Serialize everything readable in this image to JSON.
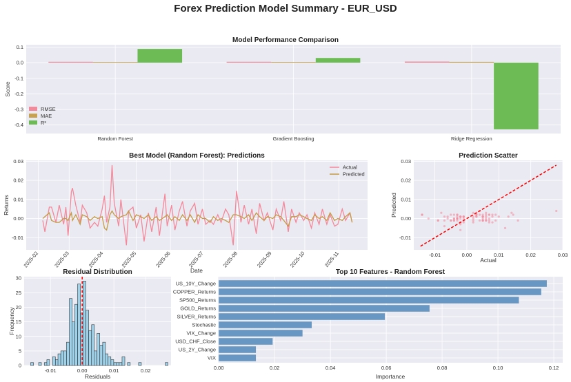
{
  "title": "Forex Prediction Model Summary - EUR_USD",
  "chart_data": [
    {
      "type": "bar",
      "title": "Model Performance Comparison",
      "xlabel": "",
      "ylabel": "Score",
      "categories": [
        "Random Forest",
        "Gradient Boosting",
        "Ridge Regression"
      ],
      "series": [
        {
          "name": "RMSE",
          "values": [
            0.0055,
            0.0056,
            0.0068
          ],
          "color": "#f28a9c"
        },
        {
          "name": "MAE",
          "values": [
            0.004,
            0.0041,
            0.005
          ],
          "color": "#c8a24e"
        },
        {
          "name": "R²",
          "values": [
            0.088,
            0.03,
            -0.428
          ],
          "color": "#6dbb55"
        }
      ],
      "ylim": [
        -0.455,
        0.115
      ],
      "yticks": [
        0.1,
        0.0,
        -0.1,
        -0.2,
        -0.3,
        -0.4
      ],
      "ytick_labels": [
        "0.1",
        "0.0",
        "-0.1",
        "-0.2",
        "-0.3",
        "-0.4"
      ],
      "legend": "lower-left",
      "grid": true
    },
    {
      "type": "line",
      "title": "Best Model (Random Forest): Predictions",
      "xlabel": "Date",
      "ylabel": "Returns",
      "xlim": [
        "2025-01-21",
        "2025-11-27"
      ],
      "ylim": [
        -0.0164,
        0.0305
      ],
      "xticks": [
        "2025-02-01",
        "2025-03-01",
        "2025-04-01",
        "2025-05-01",
        "2025-06-01",
        "2025-07-01",
        "2025-08-01",
        "2025-09-01",
        "2025-10-01",
        "2025-11-01"
      ],
      "xtick_labels": [
        "2025-02",
        "2025-03",
        "2025-04",
        "2025-05",
        "2025-06",
        "2025-07",
        "2025-08",
        "2025-09",
        "2025-10",
        "2025-11"
      ],
      "yticks": [
        0.03,
        0.02,
        0.01,
        0.0,
        -0.01
      ],
      "ytick_labels": [
        "0.03",
        "0.02",
        "0.01",
        "0.00",
        "-0.01"
      ],
      "legend": "upper-right",
      "grid": true,
      "dates": [
        "2025-02-05",
        "2025-02-07",
        "2025-02-11",
        "2025-02-13",
        "2025-02-17",
        "2025-02-20",
        "2025-02-24",
        "2025-02-26",
        "2025-02-28",
        "2025-03-03",
        "2025-03-04",
        "2025-03-07",
        "2025-03-11",
        "2025-03-13",
        "2025-03-17",
        "2025-03-20",
        "2025-03-24",
        "2025-03-27",
        "2025-03-31",
        "2025-04-02",
        "2025-04-04",
        "2025-04-07",
        "2025-04-09",
        "2025-04-11",
        "2025-04-15",
        "2025-04-17",
        "2025-04-22",
        "2025-04-24",
        "2025-04-28",
        "2025-05-01",
        "2025-05-05",
        "2025-05-08",
        "2025-05-12",
        "2025-05-15",
        "2025-05-19",
        "2025-05-22",
        "2025-05-27",
        "2025-05-29",
        "2025-06-02",
        "2025-06-05",
        "2025-06-09",
        "2025-06-12",
        "2025-06-16",
        "2025-06-19",
        "2025-06-23",
        "2025-06-26",
        "2025-06-30",
        "2025-07-03",
        "2025-07-07",
        "2025-07-10",
        "2025-07-14",
        "2025-07-17",
        "2025-07-21",
        "2025-07-24",
        "2025-07-28",
        "2025-07-31",
        "2025-08-04",
        "2025-08-07",
        "2025-08-11",
        "2025-08-14",
        "2025-08-18",
        "2025-08-21",
        "2025-08-25",
        "2025-08-28",
        "2025-09-02",
        "2025-09-05",
        "2025-09-09",
        "2025-09-12",
        "2025-09-16",
        "2025-09-19",
        "2025-09-23",
        "2025-09-26",
        "2025-09-30",
        "2025-10-03",
        "2025-10-07",
        "2025-10-10",
        "2025-10-14",
        "2025-10-17",
        "2025-10-21",
        "2025-10-24",
        "2025-10-28",
        "2025-10-31",
        "2025-11-04",
        "2025-11-07",
        "2025-11-11",
        "2025-11-13"
      ],
      "series": [
        {
          "name": "Actual",
          "color": "#f4889a",
          "values": [
            -0.001,
            -0.007,
            0.006,
            0.006,
            -0.002,
            0.007,
            -0.003,
            0.006,
            -0.009,
            0.014,
            0.016,
            0.007,
            -0.002,
            0.007,
            0.003,
            -0.005,
            -0.002,
            -0.004,
            0.005,
            0.012,
            -0.002,
            0.006,
            0.028,
            0.008,
            -0.004,
            0.01,
            -0.014,
            0.004,
            0.006,
            -0.005,
            0.002,
            -0.012,
            0.003,
            -0.007,
            0.006,
            -0.009,
            0.013,
            -0.004,
            0.007,
            -0.006,
            0.004,
            0.009,
            -0.004,
            0.004,
            0.008,
            -0.003,
            0.005,
            -0.003,
            -0.001,
            -0.003,
            0.002,
            -0.002,
            0.005,
            0.002,
            -0.014,
            0.0145,
            -0.002,
            0.007,
            -0.003,
            0.005,
            -0.008,
            0.008,
            -0.001,
            0.003,
            -0.006,
            0.005,
            -0.001,
            0.009,
            -0.007,
            0.005,
            -0.002,
            0.003,
            -0.001,
            0.002,
            -0.005,
            0.003,
            -0.003,
            0.005,
            -0.003,
            0.002,
            -0.004,
            -0.003,
            0.005,
            -0.001,
            0.003,
            -0.002
          ]
        },
        {
          "name": "Predicted",
          "color": "#c49a45",
          "values": [
            0.0,
            0.001,
            0.003,
            -0.001,
            -0.002,
            -0.002,
            0.0,
            0.0,
            -0.001,
            0.003,
            -0.001,
            0.002,
            -0.003,
            0.002,
            0.001,
            -0.001,
            0.001,
            0.0,
            0.001,
            -0.005,
            -0.006,
            0.002,
            0.004,
            0.002,
            0.0,
            0.001,
            0.002,
            0.004,
            -0.001,
            0.002,
            0.001,
            0.0,
            0.002,
            -0.001,
            0.001,
            -0.001,
            0.001,
            0.002,
            -0.001,
            0.001,
            -0.001,
            0.002,
            -0.001,
            0.002,
            -0.002,
            0.002,
            0.0,
            0.0,
            -0.002,
            0.001,
            -0.001,
            0.0,
            -0.001,
            -0.002,
            0.002,
            0.002,
            0.001,
            0.0,
            0.002,
            -0.001,
            0.003,
            0.001,
            -0.001,
            0.001,
            0.0,
            0.002,
            0.001,
            -0.001,
            -0.004,
            0.001,
            0.001,
            0.002,
            0.001,
            0.0,
            -0.001,
            0.002,
            0.0,
            0.001,
            -0.001,
            0.003,
            -0.001,
            0.0,
            -0.001,
            0.001,
            0.003,
            -0.002
          ]
        }
      ]
    },
    {
      "type": "scatter",
      "title": "Prediction Scatter",
      "xlabel": "Actual",
      "ylabel": "Predicted",
      "points_from": "Best Model (Random Forest): Predictions",
      "xlim": [
        -0.0166,
        0.03
      ],
      "ylim": [
        -0.0164,
        0.0305
      ],
      "xticks": [
        -0.01,
        0.0,
        0.01,
        0.02,
        0.03
      ],
      "xtick_labels": [
        "-0.01",
        "0.00",
        "0.01",
        "0.02",
        "0.03"
      ],
      "yticks": [
        0.03,
        0.02,
        0.01,
        0.0,
        -0.01
      ],
      "ytick_labels": [
        "0.03",
        "0.02",
        "0.01",
        "0.00",
        "-0.01"
      ],
      "point_color": "#f4889a",
      "reference_line": {
        "from": -0.0145,
        "to": 0.028,
        "color": "#ff0000",
        "style": "dashed"
      },
      "grid": true
    },
    {
      "type": "bar",
      "subtype": "histogram",
      "title": "Residual Distribution",
      "xlabel": "Residuals",
      "ylabel": "Frequency",
      "bin_width": 0.00088,
      "bin_centers": [
        -0.0158,
        -0.0133,
        -0.0115,
        -0.0107,
        -0.0089,
        -0.008,
        -0.0072,
        -0.0063,
        -0.0054,
        -0.0045,
        -0.0036,
        -0.0028,
        -0.0019,
        -0.001,
        -0.0001,
        0.0007,
        0.0016,
        0.0025,
        0.0034,
        0.0042,
        0.0051,
        0.006,
        0.0069,
        0.0077,
        0.0086,
        0.0095,
        0.0104,
        0.0112,
        0.0121,
        0.013,
        0.0147,
        0.0182,
        0.0266
      ],
      "counts": [
        1,
        1,
        1,
        2,
        3,
        2,
        4,
        5,
        5,
        8,
        23,
        15,
        21,
        28,
        18,
        29,
        19,
        12,
        14,
        5,
        11,
        7,
        8,
        4,
        3,
        2,
        1,
        1,
        1,
        3,
        1,
        1,
        1
      ],
      "bar_color": "#9fd3ec",
      "mean_line": {
        "value": 0.0,
        "color": "#ff0000",
        "style": "dashed"
      },
      "xlim": [
        -0.0183,
        0.028
      ],
      "ylim": [
        0,
        30.5
      ],
      "xticks": [
        -0.01,
        0.0,
        0.01,
        0.02
      ],
      "xtick_labels": [
        "-0.01",
        "0.00",
        "0.01",
        "0.02"
      ],
      "yticks": [
        0,
        5,
        10,
        15,
        20,
        25,
        30
      ],
      "ytick_labels": [
        "0",
        "5",
        "10",
        "15",
        "20",
        "25",
        "30"
      ],
      "grid": true
    },
    {
      "type": "bar",
      "orientation": "horizontal",
      "title": "Top 10 Features - Random Forest",
      "xlabel": "Importance",
      "ylabel": "",
      "categories": [
        "US_10Y_Change",
        "COPPER_Returns",
        "SP500_Returns",
        "GOLD_Returns",
        "SILVER_Returns",
        "Stochastic",
        "VIX_Change",
        "USD_CHF_Close",
        "US_2Y_Change",
        "VIX"
      ],
      "values": [
        0.1175,
        0.1155,
        0.1075,
        0.0755,
        0.0595,
        0.0333,
        0.03,
        0.0193,
        0.0133,
        0.0133
      ],
      "bar_color": "#6897c3",
      "xlim": [
        -0.0003,
        0.1232
      ],
      "xticks": [
        0.0,
        0.02,
        0.04,
        0.06,
        0.08,
        0.1,
        0.12
      ],
      "xtick_labels": [
        "0.00",
        "0.02",
        "0.04",
        "0.06",
        "0.08",
        "0.10",
        "0.12"
      ],
      "grid": true
    }
  ]
}
